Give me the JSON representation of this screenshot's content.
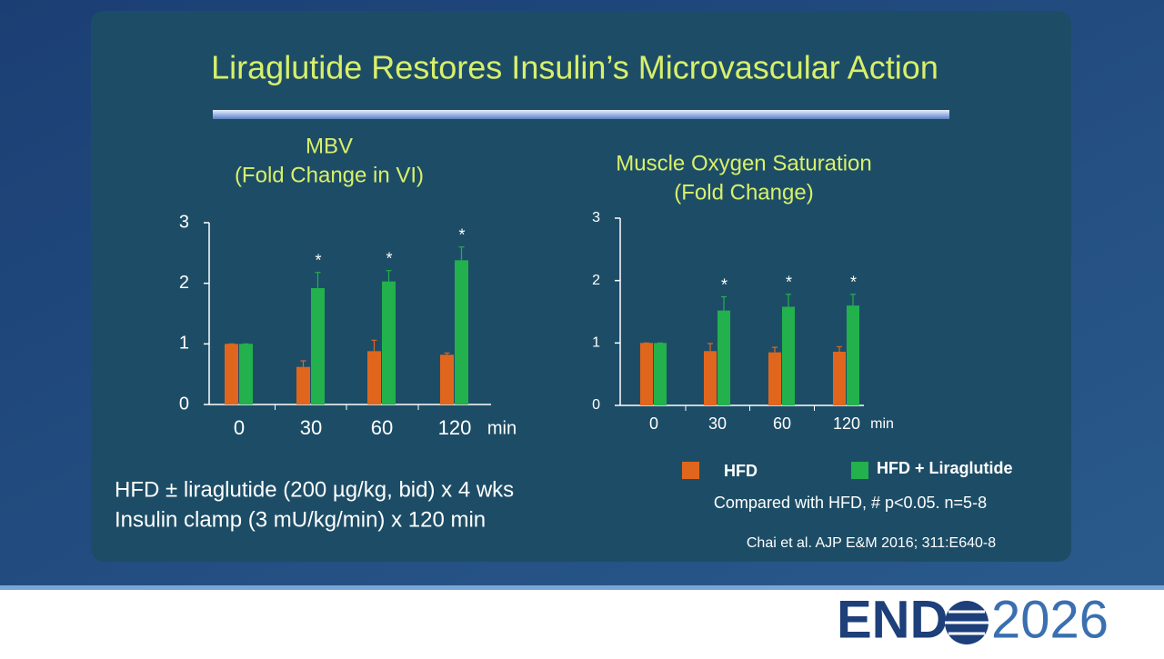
{
  "slide": {
    "title": "Liraglutide Restores Insulin’s Microvascular Action",
    "notes": [
      "HFD ± liraglutide (200 µg/kg, bid) x 4 wks",
      "Insulin clamp (3 mU/kg/min) x 120 min"
    ],
    "legend_note": "Compared with HFD,  # p<0.05. n=5-8",
    "citation": "Chai et al. AJP E&M 2016; 311:E640-8",
    "logo": {
      "brand": "END",
      "year": "2026"
    }
  },
  "chart_data": [
    {
      "type": "bar",
      "title": "MBV",
      "subtitle": "(Fold Change in VI)",
      "categories": [
        "0",
        "30",
        "60",
        "120"
      ],
      "x_unit": "min",
      "series": [
        {
          "color": "#e0661e",
          "values": [
            1,
            0.62,
            0.88,
            0.82
          ],
          "errors": [
            0,
            0.1,
            0.18,
            0.03
          ]
        },
        {
          "color": "#22b14c",
          "values": [
            1,
            1.92,
            2.03,
            2.38
          ],
          "errors": [
            0,
            0.26,
            0.18,
            0.22
          ]
        }
      ],
      "annotations": [
        null,
        "*",
        "*",
        "*"
      ],
      "ylim": [
        0,
        3
      ],
      "yticks": [
        0,
        1,
        2,
        3
      ]
    },
    {
      "type": "bar",
      "title": "Muscle Oxygen Saturation",
      "subtitle": "(Fold Change)",
      "categories": [
        "0",
        "30",
        "60",
        "120"
      ],
      "x_unit": "min",
      "series": [
        {
          "name": "HFD",
          "color": "#e0661e",
          "values": [
            1,
            0.87,
            0.85,
            0.86
          ],
          "errors": [
            0,
            0.12,
            0.08,
            0.08
          ]
        },
        {
          "name": "HFD + Liraglutide",
          "color": "#22b14c",
          "values": [
            1,
            1.52,
            1.58,
            1.6
          ],
          "errors": [
            0,
            0.22,
            0.2,
            0.18
          ]
        }
      ],
      "annotations": [
        null,
        "*",
        "*",
        "*"
      ],
      "ylim": [
        0,
        3
      ],
      "yticks": [
        0,
        1,
        2,
        3
      ],
      "legend": "bottom"
    }
  ]
}
